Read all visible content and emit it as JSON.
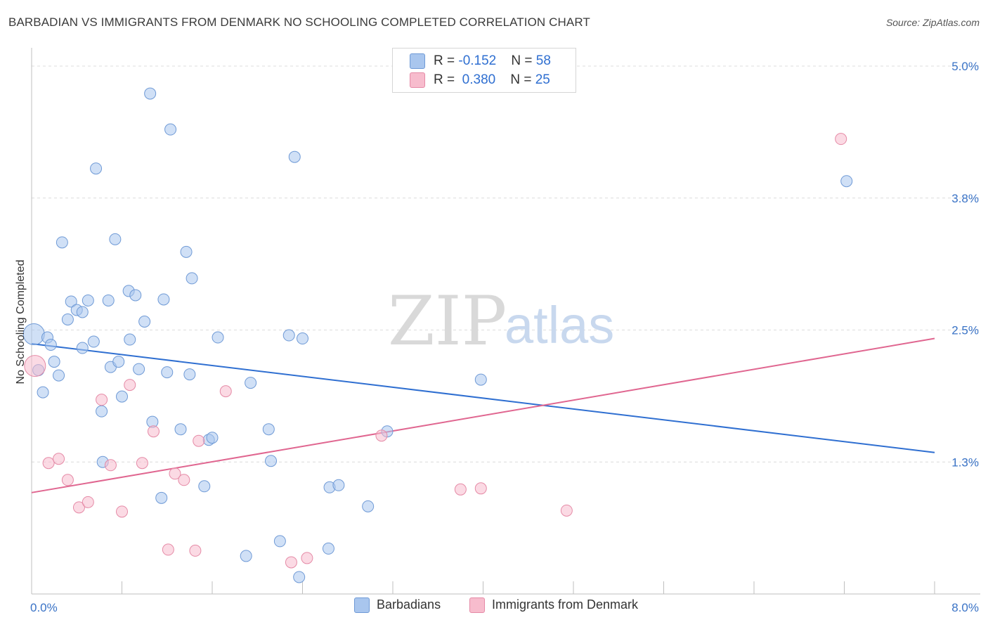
{
  "title": "BARBADIAN VS IMMIGRANTS FROM DENMARK NO SCHOOLING COMPLETED CORRELATION CHART",
  "source": "Source: ZipAtlas.com",
  "watermark": {
    "zip": "ZIP",
    "atlas": "atlas"
  },
  "legend": {
    "rows": [
      {
        "r_label": "R = ",
        "r_value": "-0.152",
        "n_label": "N = ",
        "n_value": "58",
        "color": "#a9c6ee",
        "stroke": "#6f9ad6"
      },
      {
        "r_label": "R = ",
        "r_value": " 0.380",
        "n_label": "N = ",
        "n_value": "25",
        "color": "#f7bccd",
        "stroke": "#e58aa6"
      }
    ]
  },
  "bottom_legend": [
    {
      "label": "Barbadians",
      "color": "#a9c6ee",
      "stroke": "#6f9ad6"
    },
    {
      "label": "Immigrants from Denmark",
      "color": "#f7bccd",
      "stroke": "#e58aa6"
    }
  ],
  "chart_data": {
    "type": "scatter",
    "title": "BARBADIAN VS IMMIGRANTS FROM DENMARK NO SCHOOLING COMPLETED CORRELATION CHART",
    "xlabel": "",
    "ylabel": "No Schooling Completed",
    "xlim": [
      0.0,
      8.0
    ],
    "ylim": [
      0.0,
      5.0
    ],
    "x_tick_labels": [
      "0.0%",
      "8.0%"
    ],
    "y_ticks": [
      1.25,
      2.5,
      3.75,
      5.0
    ],
    "y_tick_labels": [
      "1.3%",
      "2.5%",
      "3.8%",
      "5.0%"
    ],
    "grid": "horizontal dashed",
    "legend_position": "top-center",
    "series": [
      {
        "name": "Barbadians",
        "color": "#a9c6ee",
        "stroke": "#6f9ad6",
        "trend": {
          "x": [
            0.0,
            8.0
          ],
          "y": [
            2.37,
            1.34
          ]
        },
        "points": [
          [
            0.02,
            2.46
          ],
          [
            0.06,
            2.12
          ],
          [
            0.1,
            1.91
          ],
          [
            0.14,
            2.43
          ],
          [
            0.17,
            2.36
          ],
          [
            0.2,
            2.2
          ],
          [
            0.24,
            2.07
          ],
          [
            0.27,
            3.33
          ],
          [
            0.32,
            2.6
          ],
          [
            0.35,
            2.77
          ],
          [
            0.4,
            2.69
          ],
          [
            0.45,
            2.67
          ],
          [
            0.45,
            2.33
          ],
          [
            0.5,
            2.78
          ],
          [
            0.55,
            2.39
          ],
          [
            0.57,
            4.03
          ],
          [
            0.62,
            1.73
          ],
          [
            0.63,
            1.25
          ],
          [
            0.68,
            2.78
          ],
          [
            0.7,
            2.15
          ],
          [
            0.74,
            3.36
          ],
          [
            0.77,
            2.2
          ],
          [
            0.8,
            1.87
          ],
          [
            0.86,
            2.87
          ],
          [
            0.87,
            2.41
          ],
          [
            0.92,
            2.83
          ],
          [
            0.95,
            2.13
          ],
          [
            1.0,
            2.58
          ],
          [
            1.05,
            4.74
          ],
          [
            1.07,
            1.63
          ],
          [
            1.15,
            0.91
          ],
          [
            1.17,
            2.79
          ],
          [
            1.2,
            2.1
          ],
          [
            1.23,
            4.4
          ],
          [
            1.32,
            1.56
          ],
          [
            1.37,
            3.24
          ],
          [
            1.4,
            2.08
          ],
          [
            1.42,
            2.99
          ],
          [
            1.53,
            1.02
          ],
          [
            1.57,
            1.46
          ],
          [
            1.6,
            1.48
          ],
          [
            1.65,
            2.43
          ],
          [
            1.9,
            0.36
          ],
          [
            1.94,
            2.0
          ],
          [
            2.1,
            1.56
          ],
          [
            2.12,
            1.26
          ],
          [
            2.2,
            0.5
          ],
          [
            2.28,
            2.45
          ],
          [
            2.33,
            4.14
          ],
          [
            2.37,
            0.16
          ],
          [
            2.4,
            2.42
          ],
          [
            2.63,
            0.43
          ],
          [
            2.64,
            1.01
          ],
          [
            2.72,
            1.03
          ],
          [
            2.98,
            0.83
          ],
          [
            3.15,
            1.54
          ],
          [
            3.98,
            2.03
          ],
          [
            7.22,
            3.91
          ]
        ]
      },
      {
        "name": "Immigrants from Denmark",
        "color": "#f7bccd",
        "stroke": "#e58aa6",
        "trend": {
          "x": [
            0.0,
            8.0
          ],
          "y": [
            0.96,
            2.42
          ]
        },
        "points": [
          [
            0.03,
            2.16
          ],
          [
            0.15,
            1.24
          ],
          [
            0.24,
            1.28
          ],
          [
            0.32,
            1.08
          ],
          [
            0.42,
            0.82
          ],
          [
            0.5,
            0.87
          ],
          [
            0.62,
            1.84
          ],
          [
            0.7,
            1.22
          ],
          [
            0.8,
            0.78
          ],
          [
            0.87,
            1.98
          ],
          [
            0.98,
            1.24
          ],
          [
            1.08,
            1.54
          ],
          [
            1.21,
            0.42
          ],
          [
            1.27,
            1.14
          ],
          [
            1.35,
            1.08
          ],
          [
            1.45,
            0.41
          ],
          [
            1.48,
            1.45
          ],
          [
            1.72,
            1.92
          ],
          [
            2.3,
            0.3
          ],
          [
            2.44,
            0.34
          ],
          [
            3.1,
            1.5
          ],
          [
            3.8,
            0.99
          ],
          [
            3.98,
            1.0
          ],
          [
            4.74,
            0.79
          ],
          [
            7.17,
            4.31
          ]
        ]
      }
    ]
  }
}
